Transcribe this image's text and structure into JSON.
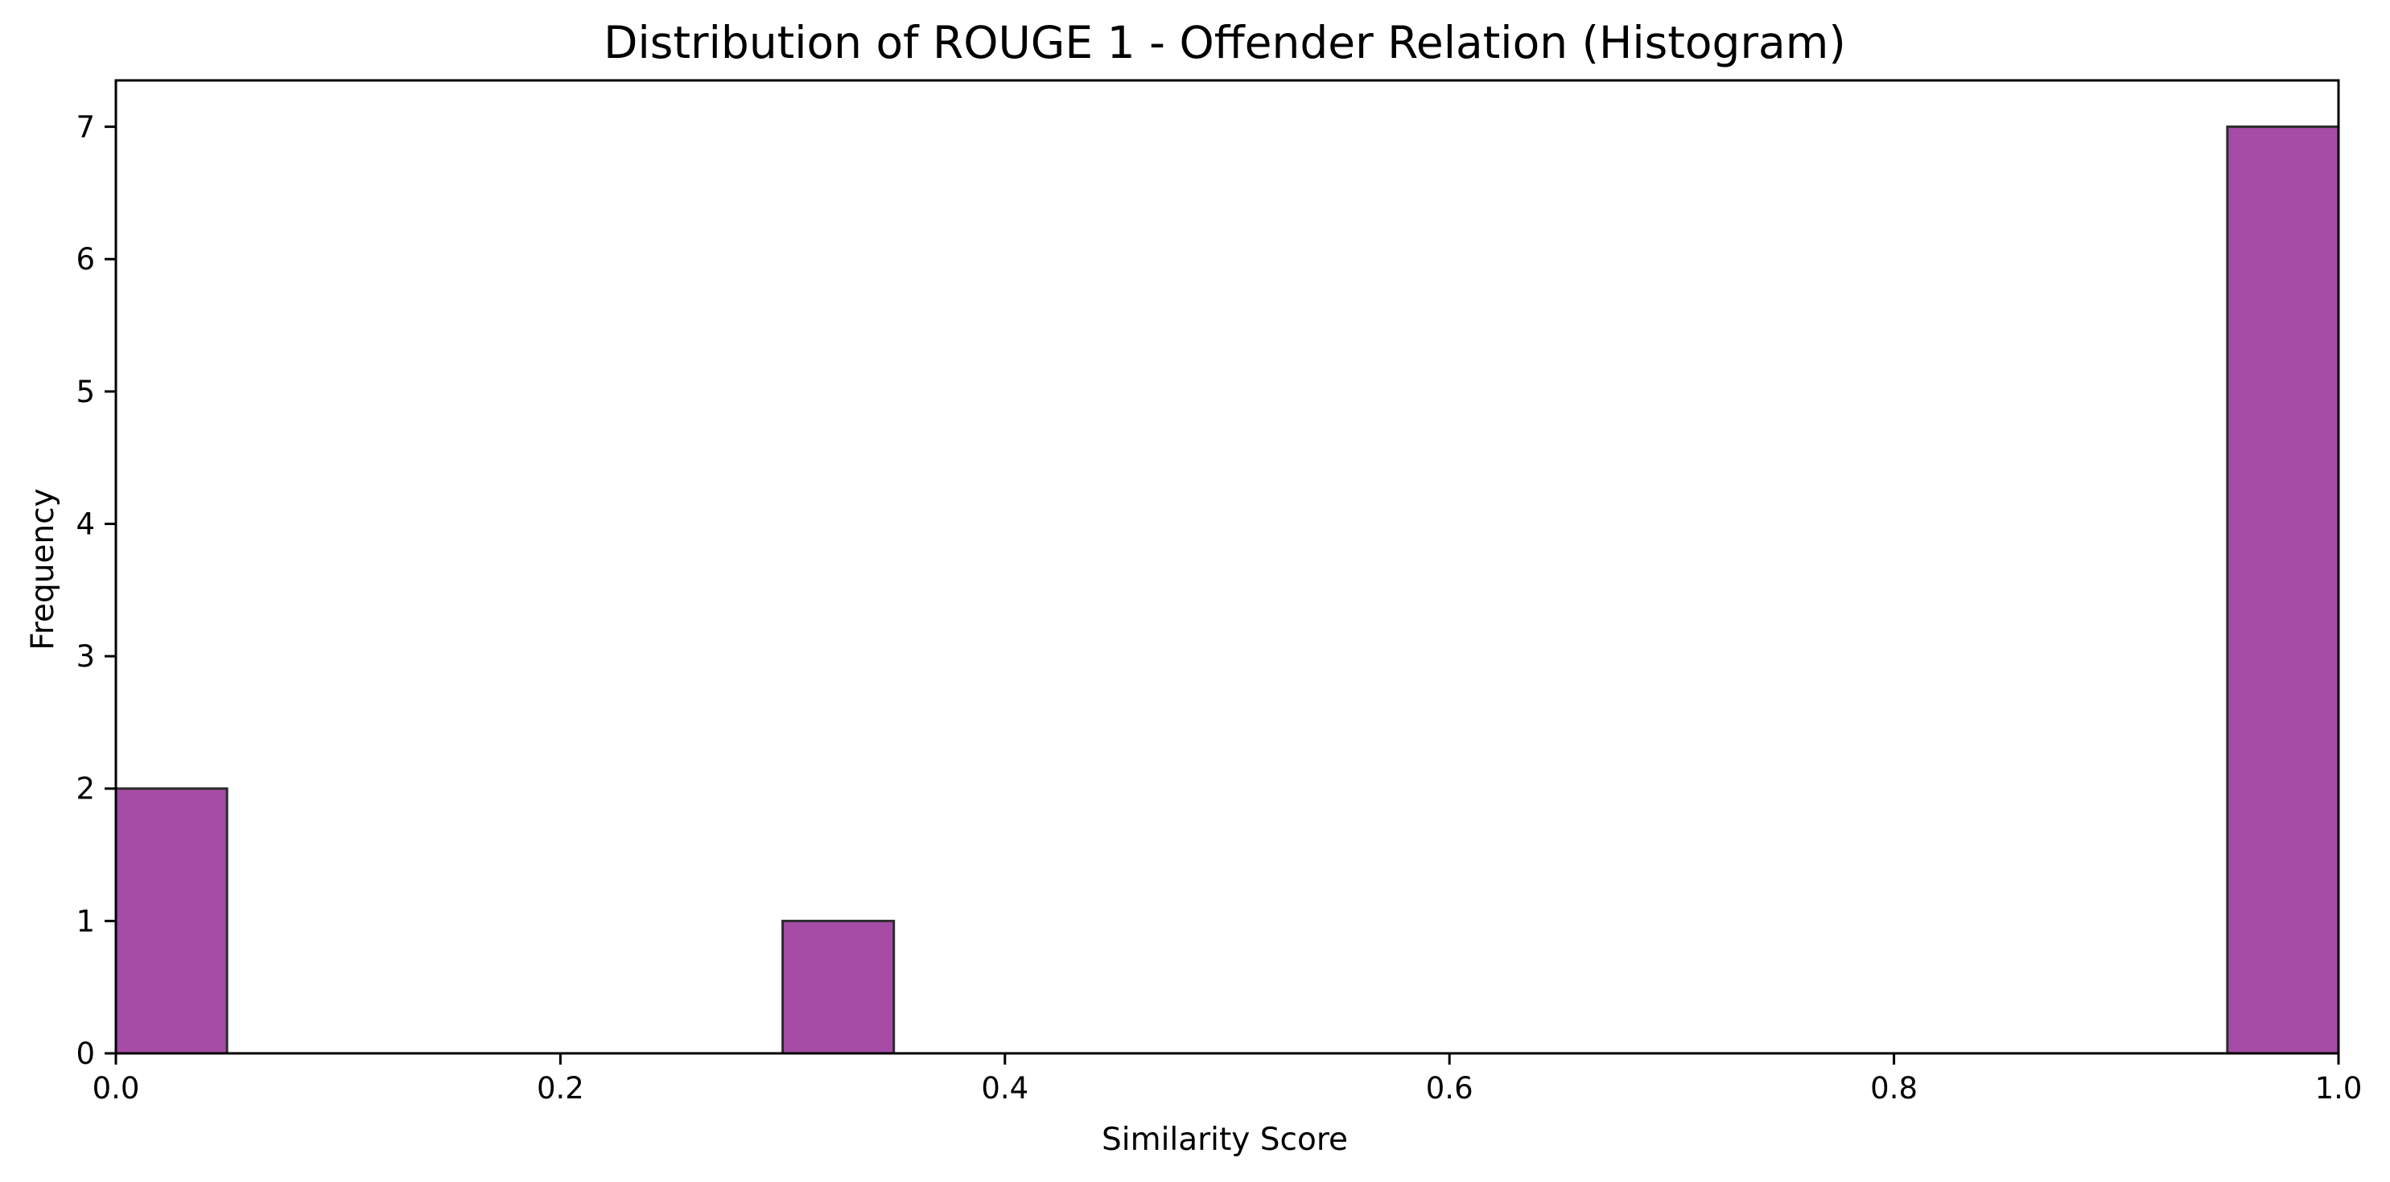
{
  "chart_data": {
    "type": "bar",
    "title": "Distribution of ROUGE 1 - Offender Relation (Histogram)",
    "xlabel": "Similarity Score",
    "ylabel": "Frequency",
    "xlim": [
      0.0,
      1.0
    ],
    "ylim": [
      0,
      7.35
    ],
    "x_ticks": [
      "0.0",
      "0.2",
      "0.4",
      "0.6",
      "0.8",
      "1.0"
    ],
    "y_ticks": [
      "0",
      "1",
      "2",
      "3",
      "4",
      "5",
      "6",
      "7"
    ],
    "bins": [
      {
        "start": 0.0,
        "end": 0.05,
        "count": 2
      },
      {
        "start": 0.3,
        "end": 0.35,
        "count": 1
      },
      {
        "start": 0.95,
        "end": 1.0,
        "count": 7
      }
    ],
    "bar_color": "#a64ca6",
    "edge_color": "#2b2b2b",
    "grid": false
  }
}
